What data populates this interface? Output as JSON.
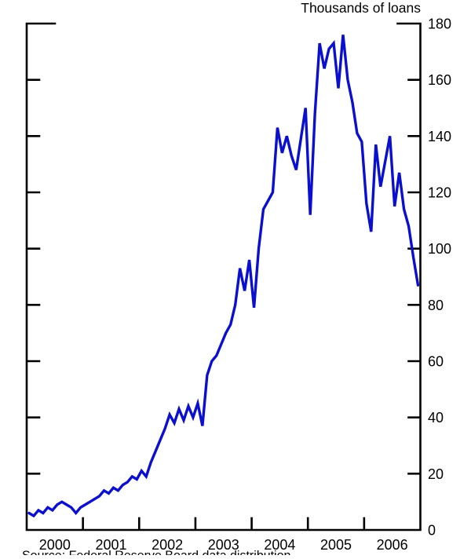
{
  "header": {
    "units_label": "Thousands of loans"
  },
  "footer": {
    "source": "Source: Federal Reserve Board data distribution"
  },
  "chart_data": {
    "type": "line",
    "title": "Thousands of loans",
    "series": [
      {
        "name": "Loans (thousands)",
        "frequency": "monthly",
        "start": "2000-01",
        "end": "2006-12",
        "values": [
          6,
          5,
          7,
          6,
          8,
          7,
          9,
          10,
          9,
          8,
          6,
          8,
          9,
          10,
          11,
          12,
          14,
          13,
          15,
          14,
          16,
          17,
          19,
          18,
          21,
          19,
          24,
          28,
          32,
          36,
          41,
          38,
          43,
          39,
          44,
          40,
          45,
          37,
          55,
          60,
          62,
          66,
          70,
          73,
          80,
          93,
          85,
          96,
          79,
          100,
          114,
          117,
          120,
          143,
          134,
          140,
          133,
          128,
          139,
          150,
          112,
          148,
          173,
          164,
          171,
          173,
          157,
          176,
          160,
          152,
          141,
          138,
          116,
          106,
          137,
          122,
          131,
          140,
          115,
          127,
          114,
          108,
          97,
          87
        ]
      }
    ],
    "x_tick_labels": [
      "2000",
      "2001",
      "2002",
      "2003",
      "2004",
      "2005",
      "2006"
    ],
    "y_tick_labels": [
      "0",
      "20",
      "40",
      "60",
      "80",
      "100",
      "120",
      "140",
      "160",
      "180"
    ],
    "y_ticks": [
      0,
      20,
      40,
      60,
      80,
      100,
      120,
      140,
      160,
      180
    ],
    "ylim": [
      0,
      180
    ],
    "xlabel": "",
    "ylabel": "Thousands of loans",
    "legend": "none",
    "grid": false,
    "y_axis_labels_side": "right",
    "line_color": "#0b0fce",
    "axis_color": "#000000"
  }
}
